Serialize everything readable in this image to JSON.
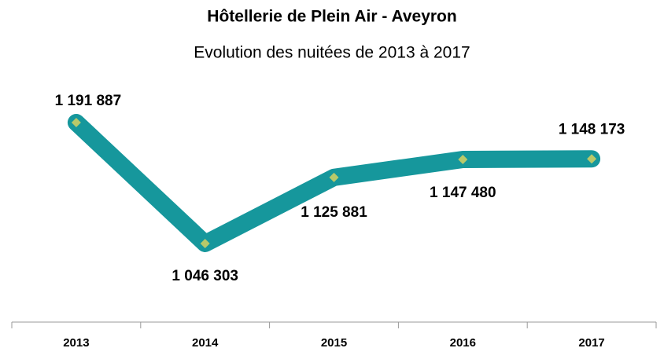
{
  "chart_data": {
    "type": "line",
    "title": "Hôtellerie de Plein Air - Aveyron",
    "subtitle": "Evolution des nuitées de 2013 à 2017",
    "categories": [
      "2013",
      "2014",
      "2015",
      "2016",
      "2017"
    ],
    "series": [
      {
        "name": null,
        "color": "#16979c",
        "marker_color": "#b8c96a",
        "values": [
          1191887,
          1046303,
          1125881,
          1147480,
          1148173
        ],
        "value_labels": [
          "1 191 887",
          "1 046 303",
          "1 125 881",
          "1 147 480",
          "1 148 173"
        ]
      }
    ]
  }
}
